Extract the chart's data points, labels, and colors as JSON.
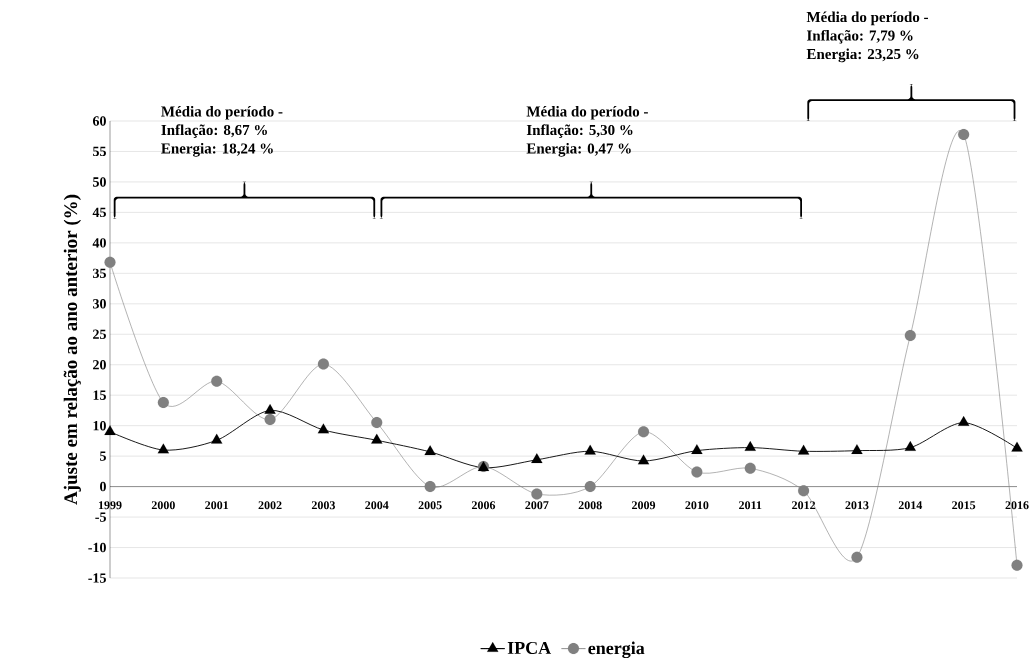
{
  "chart_data": {
    "type": "line",
    "ylabel": "Ajuste em relação ao ano anterior (%)",
    "categories": [
      "1999",
      "2000",
      "2001",
      "2002",
      "2003",
      "2004",
      "2005",
      "2006",
      "2007",
      "2008",
      "2009",
      "2010",
      "2011",
      "2012",
      "2013",
      "2014",
      "2015",
      "2016"
    ],
    "series": [
      {
        "name": "IPCA",
        "color": "#000000",
        "marker": "triangle",
        "values": [
          9.0,
          6.0,
          7.6,
          12.5,
          9.3,
          7.6,
          5.7,
          3.1,
          4.4,
          5.8,
          4.2,
          5.9,
          6.4,
          5.8,
          5.9,
          6.4,
          10.5,
          6.3
        ]
      },
      {
        "name": "energia",
        "color": "#808080",
        "marker": "circle",
        "values": [
          36.8,
          13.8,
          17.3,
          11.0,
          20.1,
          10.5,
          0.0,
          3.3,
          -1.2,
          0.0,
          9.0,
          2.4,
          3.0,
          -0.7,
          -11.6,
          24.8,
          57.8,
          -12.9
        ]
      }
    ],
    "ylim": [
      -15,
      60
    ],
    "yticks": [
      -15,
      -10,
      -5,
      0,
      5,
      10,
      15,
      20,
      25,
      30,
      35,
      40,
      45,
      50,
      55,
      60
    ],
    "grid": "y",
    "legend": "bottom",
    "line_style": "solid",
    "annotations": [
      "Média do período -",
      "Inflação: 8,67 %",
      "Energia: 18,24 %",
      "Média do período -",
      "Inflação: 5,30 %",
      "Energia: 0,47 %",
      "Média do período -",
      "Inflação: 7,79 %",
      "Energia: 23,25 %"
    ]
  }
}
